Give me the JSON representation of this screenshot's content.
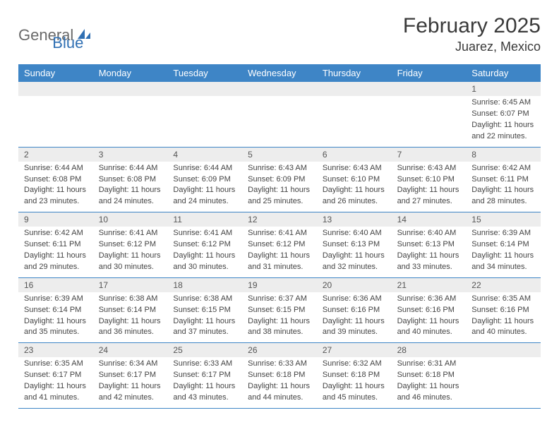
{
  "logo": {
    "part1": "General",
    "part2": "Blue"
  },
  "title": "February 2025",
  "location": "Juarez, Mexico",
  "colors": {
    "header_bg": "#3e85c6",
    "header_text": "#ffffff",
    "daynum_bg": "#ededed",
    "border": "#3e85c6",
    "logo_gray": "#6a6a6a",
    "logo_blue": "#2f6fb3"
  },
  "day_headers": [
    "Sunday",
    "Monday",
    "Tuesday",
    "Wednesday",
    "Thursday",
    "Friday",
    "Saturday"
  ],
  "weeks": [
    [
      {
        "blank": true
      },
      {
        "blank": true
      },
      {
        "blank": true
      },
      {
        "blank": true
      },
      {
        "blank": true
      },
      {
        "blank": true
      },
      {
        "day": "1",
        "sunrise": "Sunrise: 6:45 AM",
        "sunset": "Sunset: 6:07 PM",
        "dl1": "Daylight: 11 hours",
        "dl2": "and 22 minutes."
      }
    ],
    [
      {
        "day": "2",
        "sunrise": "Sunrise: 6:44 AM",
        "sunset": "Sunset: 6:08 PM",
        "dl1": "Daylight: 11 hours",
        "dl2": "and 23 minutes."
      },
      {
        "day": "3",
        "sunrise": "Sunrise: 6:44 AM",
        "sunset": "Sunset: 6:08 PM",
        "dl1": "Daylight: 11 hours",
        "dl2": "and 24 minutes."
      },
      {
        "day": "4",
        "sunrise": "Sunrise: 6:44 AM",
        "sunset": "Sunset: 6:09 PM",
        "dl1": "Daylight: 11 hours",
        "dl2": "and 24 minutes."
      },
      {
        "day": "5",
        "sunrise": "Sunrise: 6:43 AM",
        "sunset": "Sunset: 6:09 PM",
        "dl1": "Daylight: 11 hours",
        "dl2": "and 25 minutes."
      },
      {
        "day": "6",
        "sunrise": "Sunrise: 6:43 AM",
        "sunset": "Sunset: 6:10 PM",
        "dl1": "Daylight: 11 hours",
        "dl2": "and 26 minutes."
      },
      {
        "day": "7",
        "sunrise": "Sunrise: 6:43 AM",
        "sunset": "Sunset: 6:10 PM",
        "dl1": "Daylight: 11 hours",
        "dl2": "and 27 minutes."
      },
      {
        "day": "8",
        "sunrise": "Sunrise: 6:42 AM",
        "sunset": "Sunset: 6:11 PM",
        "dl1": "Daylight: 11 hours",
        "dl2": "and 28 minutes."
      }
    ],
    [
      {
        "day": "9",
        "sunrise": "Sunrise: 6:42 AM",
        "sunset": "Sunset: 6:11 PM",
        "dl1": "Daylight: 11 hours",
        "dl2": "and 29 minutes."
      },
      {
        "day": "10",
        "sunrise": "Sunrise: 6:41 AM",
        "sunset": "Sunset: 6:12 PM",
        "dl1": "Daylight: 11 hours",
        "dl2": "and 30 minutes."
      },
      {
        "day": "11",
        "sunrise": "Sunrise: 6:41 AM",
        "sunset": "Sunset: 6:12 PM",
        "dl1": "Daylight: 11 hours",
        "dl2": "and 30 minutes."
      },
      {
        "day": "12",
        "sunrise": "Sunrise: 6:41 AM",
        "sunset": "Sunset: 6:12 PM",
        "dl1": "Daylight: 11 hours",
        "dl2": "and 31 minutes."
      },
      {
        "day": "13",
        "sunrise": "Sunrise: 6:40 AM",
        "sunset": "Sunset: 6:13 PM",
        "dl1": "Daylight: 11 hours",
        "dl2": "and 32 minutes."
      },
      {
        "day": "14",
        "sunrise": "Sunrise: 6:40 AM",
        "sunset": "Sunset: 6:13 PM",
        "dl1": "Daylight: 11 hours",
        "dl2": "and 33 minutes."
      },
      {
        "day": "15",
        "sunrise": "Sunrise: 6:39 AM",
        "sunset": "Sunset: 6:14 PM",
        "dl1": "Daylight: 11 hours",
        "dl2": "and 34 minutes."
      }
    ],
    [
      {
        "day": "16",
        "sunrise": "Sunrise: 6:39 AM",
        "sunset": "Sunset: 6:14 PM",
        "dl1": "Daylight: 11 hours",
        "dl2": "and 35 minutes."
      },
      {
        "day": "17",
        "sunrise": "Sunrise: 6:38 AM",
        "sunset": "Sunset: 6:14 PM",
        "dl1": "Daylight: 11 hours",
        "dl2": "and 36 minutes."
      },
      {
        "day": "18",
        "sunrise": "Sunrise: 6:38 AM",
        "sunset": "Sunset: 6:15 PM",
        "dl1": "Daylight: 11 hours",
        "dl2": "and 37 minutes."
      },
      {
        "day": "19",
        "sunrise": "Sunrise: 6:37 AM",
        "sunset": "Sunset: 6:15 PM",
        "dl1": "Daylight: 11 hours",
        "dl2": "and 38 minutes."
      },
      {
        "day": "20",
        "sunrise": "Sunrise: 6:36 AM",
        "sunset": "Sunset: 6:16 PM",
        "dl1": "Daylight: 11 hours",
        "dl2": "and 39 minutes."
      },
      {
        "day": "21",
        "sunrise": "Sunrise: 6:36 AM",
        "sunset": "Sunset: 6:16 PM",
        "dl1": "Daylight: 11 hours",
        "dl2": "and 40 minutes."
      },
      {
        "day": "22",
        "sunrise": "Sunrise: 6:35 AM",
        "sunset": "Sunset: 6:16 PM",
        "dl1": "Daylight: 11 hours",
        "dl2": "and 40 minutes."
      }
    ],
    [
      {
        "day": "23",
        "sunrise": "Sunrise: 6:35 AM",
        "sunset": "Sunset: 6:17 PM",
        "dl1": "Daylight: 11 hours",
        "dl2": "and 41 minutes."
      },
      {
        "day": "24",
        "sunrise": "Sunrise: 6:34 AM",
        "sunset": "Sunset: 6:17 PM",
        "dl1": "Daylight: 11 hours",
        "dl2": "and 42 minutes."
      },
      {
        "day": "25",
        "sunrise": "Sunrise: 6:33 AM",
        "sunset": "Sunset: 6:17 PM",
        "dl1": "Daylight: 11 hours",
        "dl2": "and 43 minutes."
      },
      {
        "day": "26",
        "sunrise": "Sunrise: 6:33 AM",
        "sunset": "Sunset: 6:18 PM",
        "dl1": "Daylight: 11 hours",
        "dl2": "and 44 minutes."
      },
      {
        "day": "27",
        "sunrise": "Sunrise: 6:32 AM",
        "sunset": "Sunset: 6:18 PM",
        "dl1": "Daylight: 11 hours",
        "dl2": "and 45 minutes."
      },
      {
        "day": "28",
        "sunrise": "Sunrise: 6:31 AM",
        "sunset": "Sunset: 6:18 PM",
        "dl1": "Daylight: 11 hours",
        "dl2": "and 46 minutes."
      },
      {
        "blank": true
      }
    ]
  ]
}
